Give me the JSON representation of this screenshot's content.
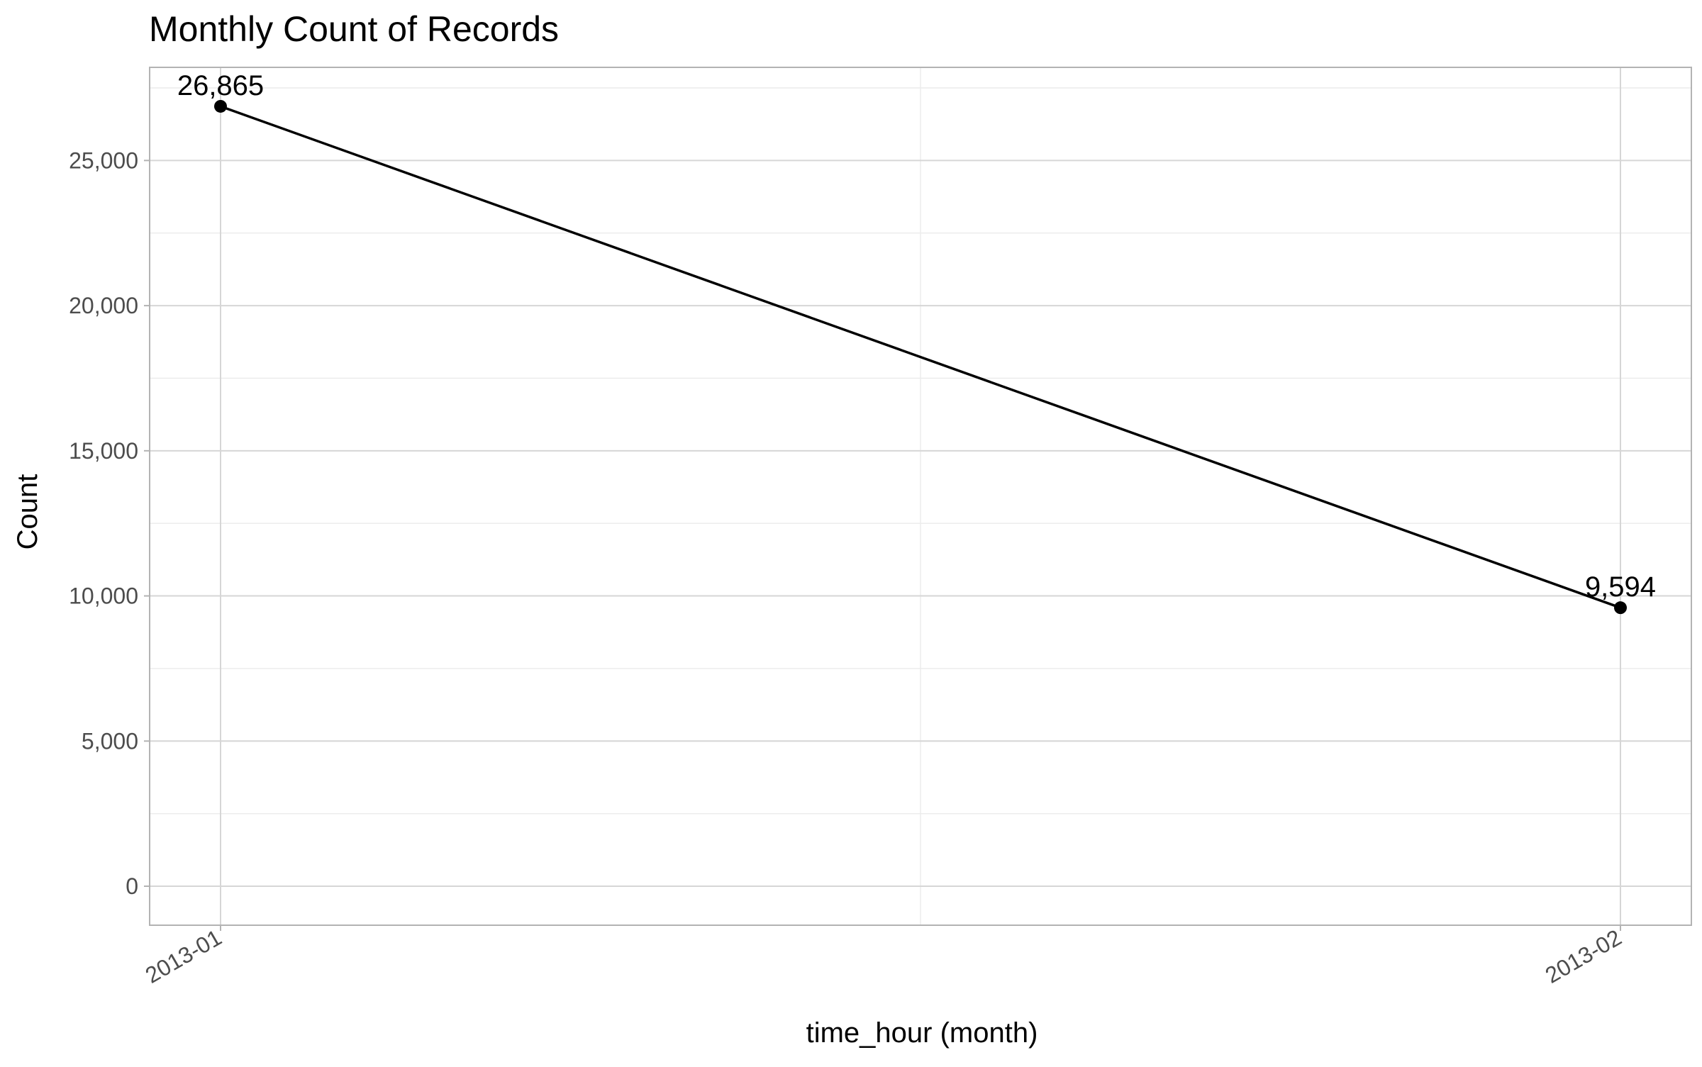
{
  "chart_data": {
    "type": "line",
    "title": "Monthly Count of Records",
    "xlabel": "time_hour (month)",
    "ylabel": "Count",
    "categories": [
      "2013-01",
      "2013-02"
    ],
    "series": [
      {
        "values": [
          26865,
          9594
        ]
      }
    ],
    "data_labels": [
      "26,865",
      "9,594"
    ],
    "ylim": [
      -1343,
      28208
    ],
    "yticks": [
      0,
      5000,
      10000,
      15000,
      20000,
      25000
    ],
    "ytick_labels": [
      "0",
      "5,000",
      "10,000",
      "15,000",
      "20,000",
      "25,000"
    ],
    "grid": true,
    "legend": "none",
    "colors": {
      "line": "#000000",
      "grid_major": "#d6d6d6",
      "grid_minor": "#ebebeb",
      "panel_border": "#b3b3b3"
    }
  }
}
